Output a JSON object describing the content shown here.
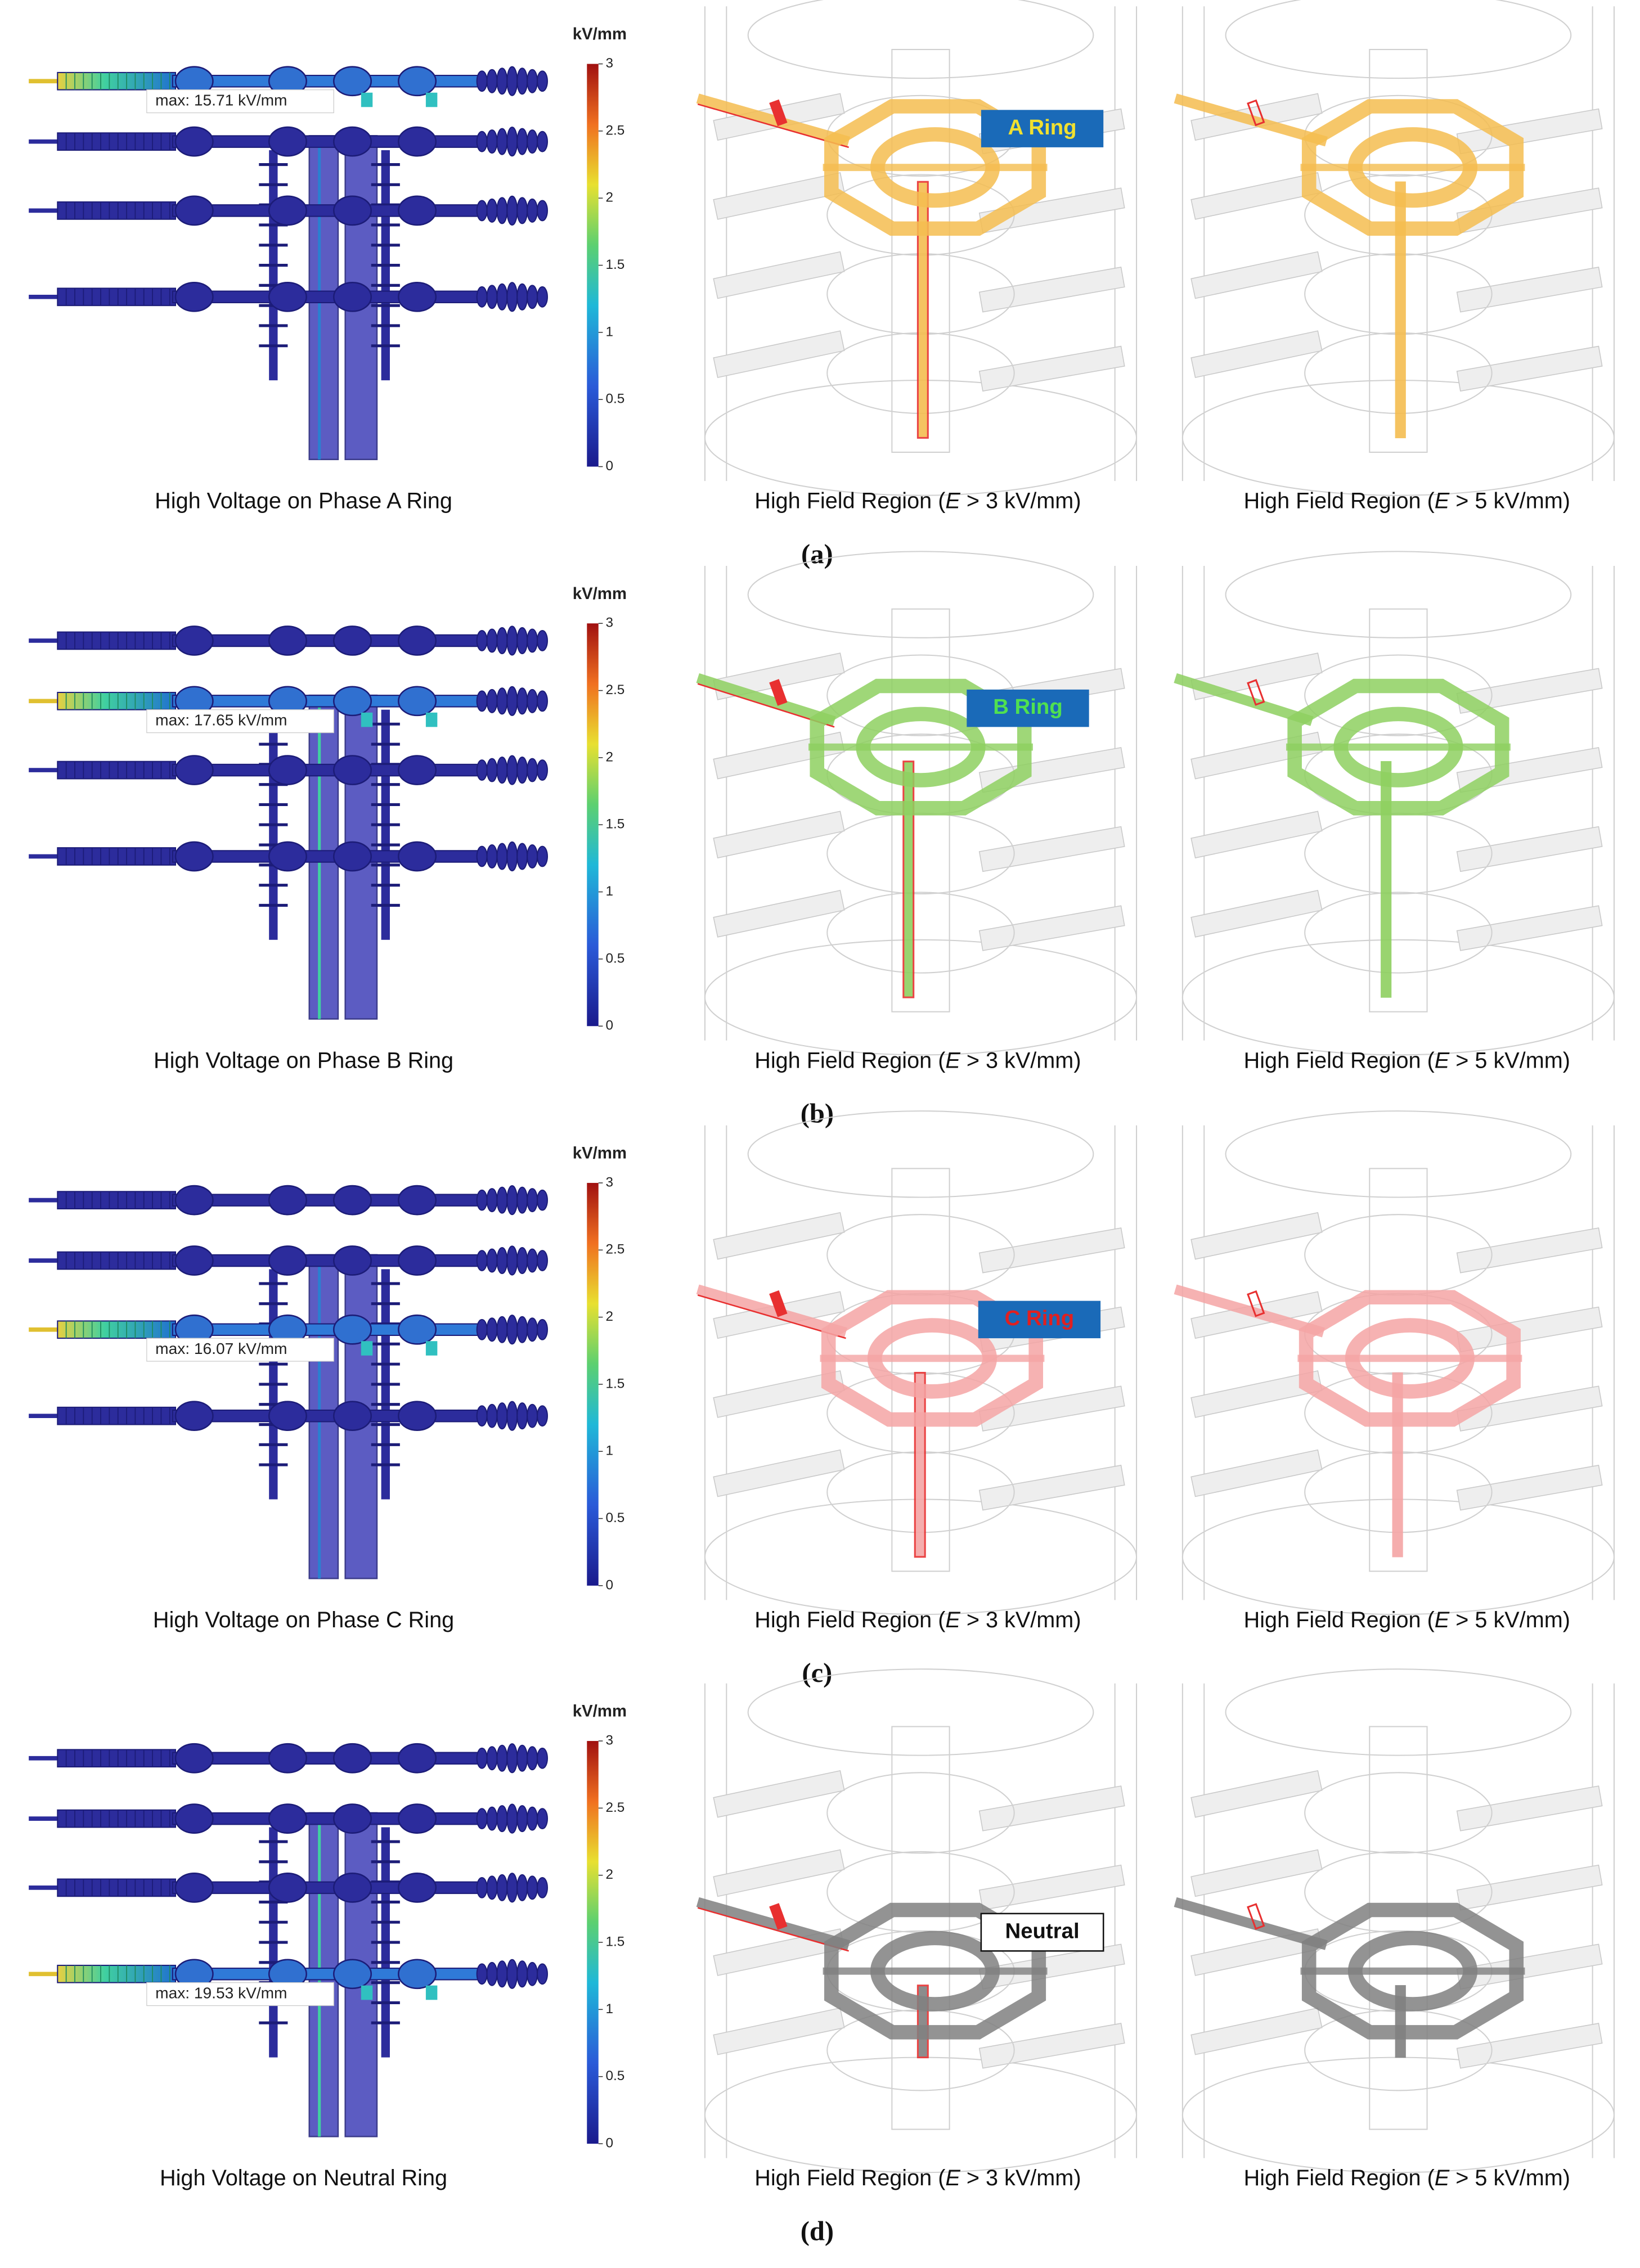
{
  "rows": [
    {
      "panel_label": "(a)",
      "colorbar": {
        "unit": "kV/mm",
        "ticks": [
          0,
          0.5,
          1,
          1.5,
          2,
          2.5,
          3
        ]
      },
      "max_label": "max: 15.71 kV/mm",
      "ring_label": "A Ring",
      "captions": {
        "voltage": "High Voltage on Phase A Ring",
        "field_3": {
          "prefix": "High Field Region (",
          "symbol": "E",
          "suffix": " > 3 kV/mm)"
        },
        "field_5": {
          "prefix": "High Field Region (",
          "symbol": "E",
          "suffix": " > 5 kV/mm)"
        }
      }
    },
    {
      "panel_label": "(b)",
      "colorbar": {
        "unit": "kV/mm",
        "ticks": [
          0,
          0.5,
          1,
          1.5,
          2,
          2.5,
          3
        ]
      },
      "max_label": "max: 17.65 kV/mm",
      "ring_label": "B Ring",
      "captions": {
        "voltage": "High Voltage on Phase B Ring",
        "field_3": {
          "prefix": "High Field Region (",
          "symbol": "E",
          "suffix": " > 3 kV/mm)"
        },
        "field_5": {
          "prefix": "High Field Region (",
          "symbol": "E",
          "suffix": " > 5 kV/mm)"
        }
      }
    },
    {
      "panel_label": "(c)",
      "colorbar": {
        "unit": "kV/mm",
        "ticks": [
          0,
          0.5,
          1,
          1.5,
          2,
          2.5,
          3
        ]
      },
      "max_label": "max: 16.07 kV/mm",
      "ring_label": "C Ring",
      "captions": {
        "voltage": "High Voltage on Phase C Ring",
        "field_3": {
          "prefix": "High Field Region (",
          "symbol": "E",
          "suffix": " > 3 kV/mm)"
        },
        "field_5": {
          "prefix": "High Field Region (",
          "symbol": "E",
          "suffix": " > 5 kV/mm)"
        }
      }
    },
    {
      "panel_label": "(d)",
      "colorbar": {
        "unit": "kV/mm",
        "ticks": [
          0,
          0.5,
          1,
          1.5,
          2,
          2.5,
          3
        ]
      },
      "max_label": "max: 19.53 kV/mm",
      "ring_label": "Neutral",
      "captions": {
        "voltage": "High Voltage on Neutral Ring",
        "field_3": {
          "prefix": "High Field Region (",
          "symbol": "E",
          "suffix": " > 3 kV/mm)"
        },
        "field_5": {
          "prefix": "High Field Region (",
          "symbol": "E",
          "suffix": " > 5 kV/mm)"
        }
      }
    }
  ]
}
